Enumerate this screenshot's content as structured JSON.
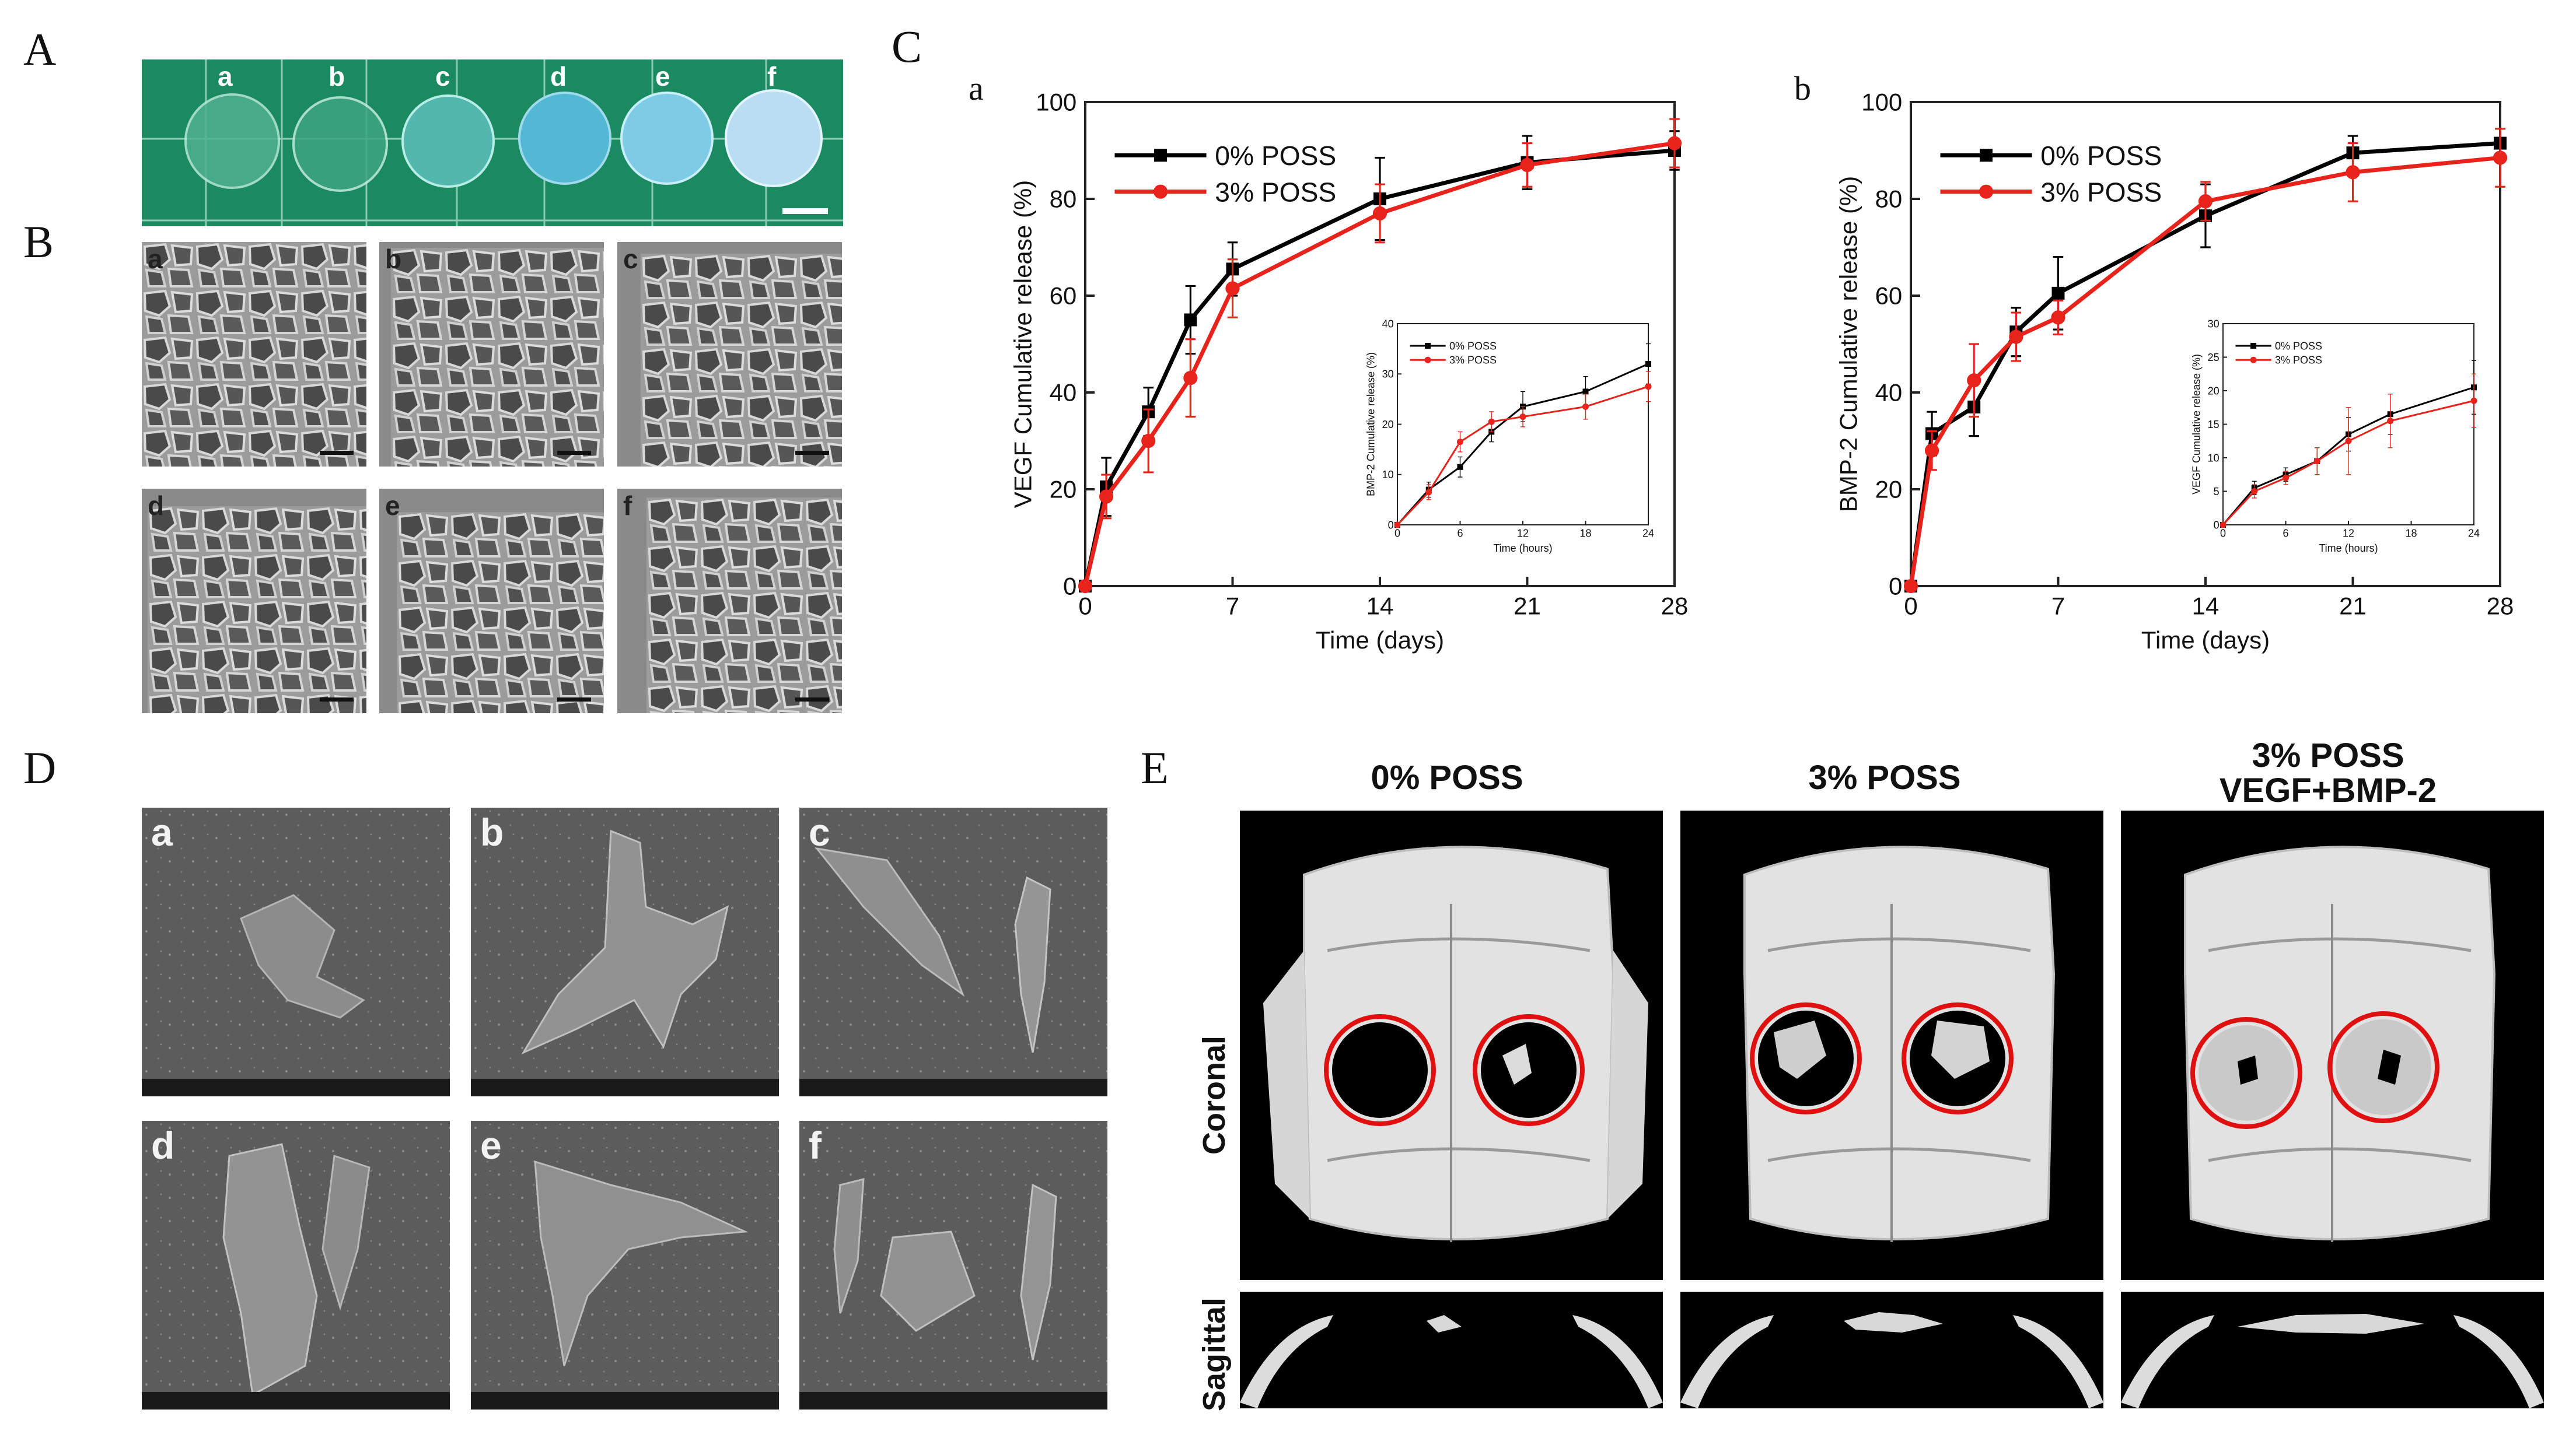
{
  "panel_labels": {
    "A": "A",
    "B": "B",
    "C": "C",
    "D": "D",
    "E": "E"
  },
  "panelA": {
    "samples": [
      "a",
      "b",
      "c",
      "d",
      "e",
      "f"
    ]
  },
  "panelB": {
    "tags": [
      "a",
      "b",
      "c",
      "d",
      "e",
      "f"
    ]
  },
  "panelD": {
    "tags": [
      "a",
      "b",
      "c",
      "d",
      "e",
      "f"
    ]
  },
  "panelE": {
    "columns": [
      "0% POSS",
      "3% POSS",
      "3% POSS\nVEGF+BMP-2"
    ],
    "col3_line1": "3% POSS",
    "col3_line2": "VEGF+BMP-2",
    "row_coronal": "Coronal",
    "row_sagittal": "Sagittal"
  },
  "colors": {
    "poss0": "#000000",
    "poss3": "#e8231c",
    "ring": "#e01010",
    "grid_green": "#1f8a62"
  },
  "chart_data": [
    {
      "id": "C-a",
      "sublabel": "a",
      "type": "line",
      "xlabel": "Time (days)",
      "ylabel": "VEGF Cumulative release (%)",
      "xticks": [
        0,
        7,
        14,
        21,
        28
      ],
      "yticks": [
        0,
        20,
        40,
        60,
        80,
        100
      ],
      "xlim": [
        0,
        28
      ],
      "ylim": [
        0,
        100
      ],
      "legend": "top-left",
      "series": [
        {
          "name": "0% POSS",
          "x": [
            0,
            1,
            3,
            5,
            7,
            14,
            21,
            28
          ],
          "y": [
            0,
            20.5,
            36,
            55,
            65.5,
            80,
            87.5,
            90
          ],
          "err": [
            0,
            6,
            5,
            7,
            5.5,
            8.5,
            5.5,
            4
          ]
        },
        {
          "name": "3% POSS",
          "x": [
            0,
            1,
            3,
            5,
            7,
            14,
            21,
            28
          ],
          "y": [
            0,
            18.5,
            30,
            43,
            61.5,
            77,
            87,
            91.5
          ],
          "err": [
            0,
            4.5,
            6.5,
            8,
            6,
            6,
            4.5,
            5
          ]
        }
      ],
      "inset": {
        "xlabel": "Time (hours)",
        "ylabel": "BMP-2 Cumulative release (%)",
        "xticks": [
          0,
          6,
          12,
          18,
          24
        ],
        "yticks": [
          0,
          10,
          20,
          30,
          40
        ],
        "xlim": [
          0,
          24
        ],
        "ylim": [
          0,
          40
        ],
        "series": [
          {
            "name": "0% POSS",
            "x": [
              0,
              3,
              6,
              9,
              12,
              18,
              24
            ],
            "y": [
              0,
              7,
              11.5,
              18.5,
              23.5,
              26.5,
              32
            ],
            "err": [
              0,
              1.5,
              2,
              2,
              3,
              3,
              4
            ]
          },
          {
            "name": "3% POSS",
            "x": [
              0,
              3,
              6,
              9,
              12,
              18,
              24
            ],
            "y": [
              0,
              6.5,
              16.5,
              20.5,
              21.5,
              23.5,
              27.5
            ],
            "err": [
              0,
              1.5,
              2,
              2,
              2,
              2.5,
              3
            ]
          }
        ]
      }
    },
    {
      "id": "C-b",
      "sublabel": "b",
      "type": "line",
      "xlabel": "Time (days)",
      "ylabel": "BMP-2 Cumulative release (%)",
      "xticks": [
        0,
        7,
        14,
        21,
        28
      ],
      "yticks": [
        0,
        20,
        40,
        60,
        80,
        100
      ],
      "xlim": [
        0,
        28
      ],
      "ylim": [
        0,
        100
      ],
      "legend": "top-left",
      "series": [
        {
          "name": "0% POSS",
          "x": [
            0,
            1,
            3,
            5,
            7,
            14,
            21,
            28
          ],
          "y": [
            0,
            31.5,
            37,
            52.5,
            60.5,
            76.5,
            89.5,
            91.5
          ],
          "err": [
            0,
            4.5,
            6,
            5,
            7.5,
            6.5,
            3.5,
            3
          ]
        },
        {
          "name": "3% POSS",
          "x": [
            0,
            1,
            3,
            5,
            7,
            14,
            21,
            28
          ],
          "y": [
            0,
            28,
            42.5,
            51.5,
            55.5,
            79.5,
            85.5,
            88.5
          ],
          "err": [
            0,
            4,
            7.5,
            5,
            3.5,
            4,
            6,
            6
          ]
        }
      ],
      "inset": {
        "xlabel": "Time (hours)",
        "ylabel": "VEGF Cumulative release (%)",
        "xticks": [
          0,
          6,
          12,
          18,
          24
        ],
        "yticks": [
          0,
          5,
          10,
          15,
          20,
          25,
          30
        ],
        "xlim": [
          0,
          24
        ],
        "ylim": [
          0,
          30
        ],
        "series": [
          {
            "name": "0% POSS",
            "x": [
              0,
              3,
              6,
              9,
              12,
              16,
              24
            ],
            "y": [
              0,
              5.5,
              7.5,
              9.5,
              13.5,
              16.5,
              20.5
            ],
            "err": [
              0,
              1,
              1,
              2,
              2.5,
              3,
              4
            ]
          },
          {
            "name": "3% POSS",
            "x": [
              0,
              3,
              6,
              9,
              12,
              16,
              24
            ],
            "y": [
              0,
              5,
              7,
              9.5,
              12.5,
              15.5,
              18.5
            ],
            "err": [
              0,
              1,
              1,
              2,
              5,
              4,
              4
            ]
          }
        ]
      }
    }
  ]
}
